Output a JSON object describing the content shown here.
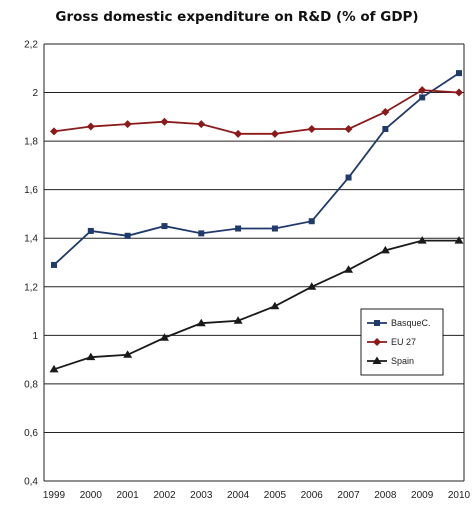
{
  "chart_data": {
    "type": "line",
    "title": "Gross domestic expenditure on R&D (% of GDP)",
    "xlabel": "",
    "ylabel": "",
    "x": [
      "1999",
      "2000",
      "2001",
      "2002",
      "2003",
      "2004",
      "2005",
      "2006",
      "2007",
      "2008",
      "2009",
      "2010"
    ],
    "ylim": [
      0.4,
      2.2
    ],
    "yticks": [
      "0,4",
      "0,6",
      "0,8",
      "1",
      "1,2",
      "1,4",
      "1,6",
      "1,8",
      "2",
      "2,2"
    ],
    "grid": true,
    "legend_position": "lower-right",
    "series": [
      {
        "name": "BasqueC.",
        "color": "#1f3a6b",
        "marker": "square",
        "values": [
          1.29,
          1.43,
          1.41,
          1.45,
          1.42,
          1.44,
          1.44,
          1.47,
          1.65,
          1.85,
          1.98,
          2.08
        ]
      },
      {
        "name": "EU 27",
        "color": "#8b1a1a",
        "marker": "diamond",
        "values": [
          1.84,
          1.86,
          1.87,
          1.88,
          1.87,
          1.83,
          1.83,
          1.85,
          1.85,
          1.92,
          2.01,
          2.0
        ]
      },
      {
        "name": "Spain",
        "color": "#1a1a1a",
        "marker": "triangle",
        "values": [
          0.86,
          0.91,
          0.92,
          0.99,
          1.05,
          1.06,
          1.12,
          1.2,
          1.27,
          1.35,
          1.39,
          1.39
        ]
      }
    ]
  }
}
